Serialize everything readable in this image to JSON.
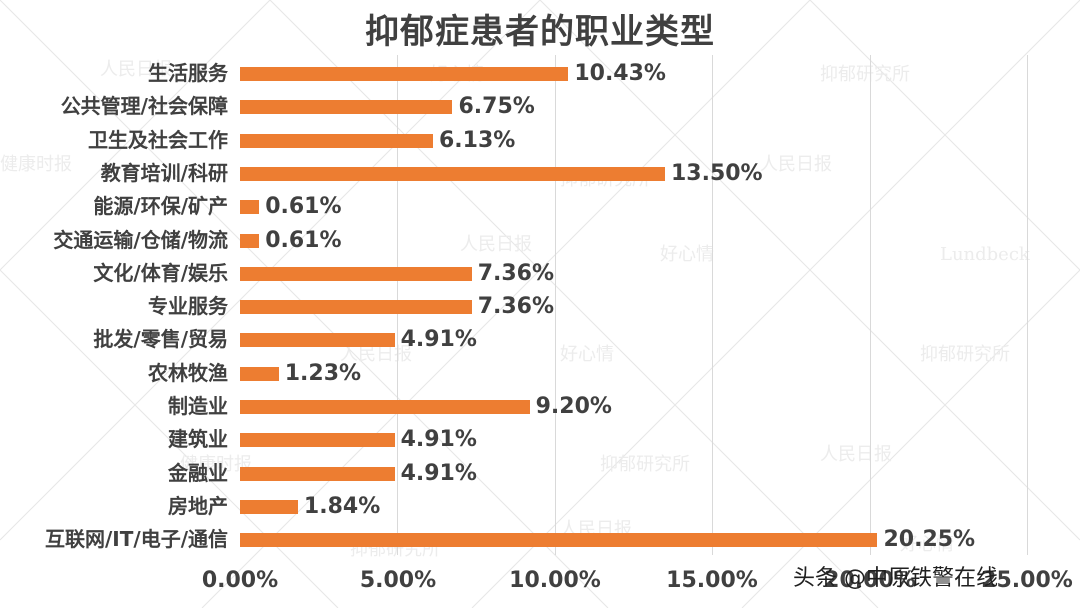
{
  "chart_data": {
    "type": "bar",
    "orientation": "horizontal",
    "title": "抑郁症患者的职业类型",
    "xlabel": "",
    "ylabel": "",
    "xlim": [
      0,
      25
    ],
    "x_ticks": [
      "0.00%",
      "5.00%",
      "10.00%",
      "15.00%",
      "20.00%",
      "25.00%"
    ],
    "grid": true,
    "legend": null,
    "bar_color": "#ed7d31",
    "categories": [
      "生活服务",
      "公共管理/社会保障",
      "卫生及社会工作",
      "教育培训/科研",
      "能源/环保/矿产",
      "交通运输/仓储/物流",
      "文化/体育/娱乐",
      "专业服务",
      "批发/零售/贸易",
      "农林牧渔",
      "制造业",
      "建筑业",
      "金融业",
      "房地产",
      "互联网/IT/电子/通信"
    ],
    "values": [
      10.43,
      6.75,
      6.13,
      13.5,
      0.61,
      0.61,
      7.36,
      7.36,
      4.91,
      1.23,
      9.2,
      4.91,
      4.91,
      1.84,
      20.25
    ],
    "value_labels": [
      "10.43%",
      "6.75%",
      "6.13%",
      "13.50%",
      "0.61%",
      "0.61%",
      "7.36%",
      "7.36%",
      "4.91%",
      "1.23%",
      "9.20%",
      "4.91%",
      "4.91%",
      "1.84%",
      "20.25%"
    ]
  },
  "credit": "头条 @中原铁警在线"
}
